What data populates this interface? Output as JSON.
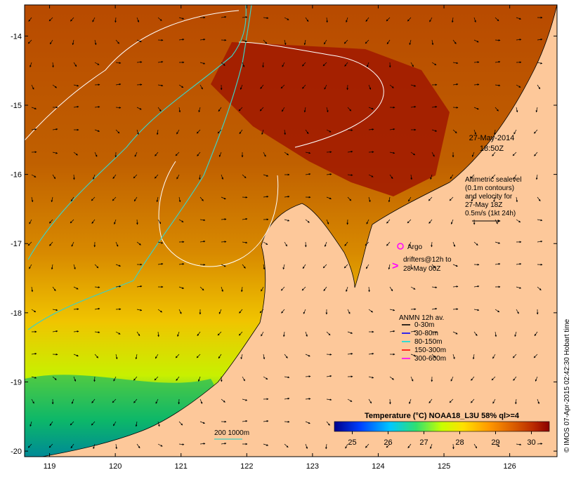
{
  "chart_data": {
    "type": "map",
    "x_ticks": [
      "119",
      "120",
      "121",
      "122",
      "123",
      "124",
      "125",
      "126"
    ],
    "y_ticks": [
      "-14",
      "-15",
      "-16",
      "-17",
      "-18",
      "-19",
      "-20"
    ],
    "xlim": [
      118.62,
      126.72
    ],
    "ylim": [
      -20.08,
      -13.55
    ],
    "timestamp": {
      "date": "27-May-2014",
      "time": "18:50Z"
    },
    "altimetry_note": [
      "Altimetric sealevel",
      "(0.1m contours)",
      "and velocity for",
      "27-May 18Z",
      "0.5m/s (1kt 24h)"
    ],
    "argo_label": "Argo",
    "drifters_label": [
      "drifters@12h to",
      "28-May 00Z"
    ],
    "anmn_legend": {
      "title": "ANMN 12h av.",
      "entries": [
        {
          "label": "0-30m",
          "color": "#000000"
        },
        {
          "label": "30-80m",
          "color": "#0000ff"
        },
        {
          "label": "80-150m",
          "color": "#00e0e0"
        },
        {
          "label": "150-300m",
          "color": "#ff0000"
        },
        {
          "label": "300-600m",
          "color": "#ff00ff"
        }
      ]
    },
    "isobath_label": "200 1000m",
    "colorbar": {
      "title": "Temperature (°C) NOAA18_L3U 58% ql>=4",
      "ticks": [
        "25",
        "26",
        "27",
        "28",
        "29",
        "30"
      ],
      "range": [
        24.5,
        30.5
      ]
    },
    "credit": "© IMOS 07-Apr-2015 02:42:30 Hobart time",
    "colors": {
      "land": "#fdc89a",
      "isobath": "#40d0c0",
      "contour": "#ffffff",
      "argo": "#ff00ff"
    }
  }
}
